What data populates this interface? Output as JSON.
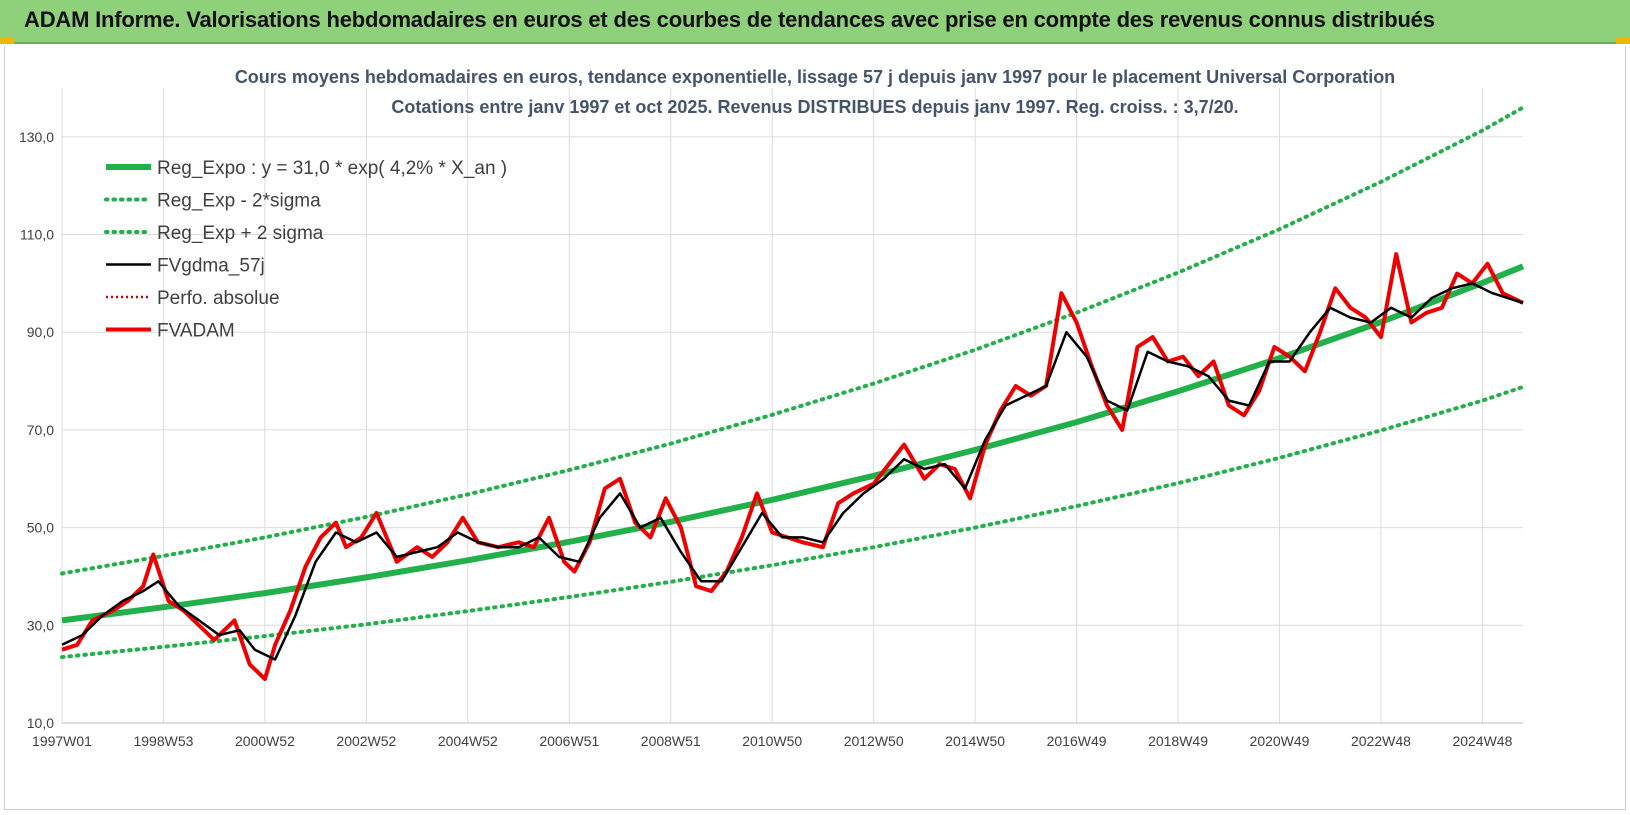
{
  "header": {
    "title": "ADAM Informe. Valorisations hebdomadaires en euros et des courbes de tendances avec prise en compte des revenus connus distribués"
  },
  "colors": {
    "header_bg": "#8fd07a",
    "accent": "#f2b600",
    "reg_expo": "#22b04b",
    "fvgdma": "#000000",
    "perfo": "#cc0000",
    "fvadam": "#ee0000"
  },
  "chart_data": {
    "type": "line",
    "title": "Cours moyens hebdomadaires en euros, tendance exponentielle, lissage 57 j depuis janv 1997 pour le placement Universal Corporation",
    "subtitle": "Cotations entre janv 1997 et oct 2025. Revenus DISTRIBUES depuis janv 1997. Reg. croiss. : 3,7/20.",
    "ylim": [
      10,
      140
    ],
    "xlim": [
      1997.0,
      2025.8
    ],
    "grid": true,
    "legend_position": "top-left",
    "y_ticks": [
      {
        "value": 10,
        "label": "10,0"
      },
      {
        "value": 30,
        "label": "30,0"
      },
      {
        "value": 50,
        "label": "50,0"
      },
      {
        "value": 70,
        "label": "70,0"
      },
      {
        "value": 90,
        "label": "90,0"
      },
      {
        "value": 110,
        "label": "110,0"
      },
      {
        "value": 130,
        "label": "130,0"
      }
    ],
    "x_ticks": [
      {
        "value": 1997.0,
        "label": "1997W01"
      },
      {
        "value": 1999.0,
        "label": "1998W53"
      },
      {
        "value": 2001.0,
        "label": "2000W52"
      },
      {
        "value": 2003.0,
        "label": "2002W52"
      },
      {
        "value": 2005.0,
        "label": "2004W52"
      },
      {
        "value": 2007.0,
        "label": "2006W51"
      },
      {
        "value": 2009.0,
        "label": "2008W51"
      },
      {
        "value": 2011.0,
        "label": "2010W50"
      },
      {
        "value": 2013.0,
        "label": "2012W50"
      },
      {
        "value": 2015.0,
        "label": "2014W50"
      },
      {
        "value": 2017.0,
        "label": "2016W49"
      },
      {
        "value": 2019.0,
        "label": "2018W49"
      },
      {
        "value": 2021.0,
        "label": "2020W49"
      },
      {
        "value": 2023.0,
        "label": "2022W48"
      },
      {
        "value": 2025.0,
        "label": "2024W48"
      }
    ],
    "legend": [
      {
        "key": "reg_expo",
        "label": "Reg_Expo : y = 31,0 * exp( 4,2% *  X_an )"
      },
      {
        "key": "reg_minus",
        "label": "Reg_Exp - 2*sigma"
      },
      {
        "key": "reg_plus",
        "label": "Reg_Exp + 2 sigma"
      },
      {
        "key": "fvgdma",
        "label": "FVgdma_57j"
      },
      {
        "key": "perfo",
        "label": "Perfo. absolue"
      },
      {
        "key": "fvadam",
        "label": "FVADAM"
      }
    ],
    "series": [
      {
        "key": "reg_expo",
        "x": [
          1997.0,
          1999.0,
          2001.0,
          2003.0,
          2005.0,
          2007.0,
          2009.0,
          2011.0,
          2013.0,
          2015.0,
          2017.0,
          2019.0,
          2021.0,
          2023.0,
          2025.0,
          2025.8
        ],
        "values": [
          31.0,
          33.7,
          36.6,
          39.8,
          43.3,
          47.1,
          51.2,
          55.7,
          60.6,
          65.9,
          71.6,
          77.9,
          84.7,
          92.1,
          100.1,
          103.5
        ]
      },
      {
        "key": "reg_minus",
        "x": [
          1997.0,
          1999.0,
          2001.0,
          2003.0,
          2005.0,
          2007.0,
          2009.0,
          2011.0,
          2013.0,
          2015.0,
          2017.0,
          2019.0,
          2021.0,
          2023.0,
          2025.0,
          2025.8
        ],
        "values": [
          23.5,
          25.6,
          27.8,
          30.2,
          32.9,
          35.8,
          38.9,
          42.3,
          46.0,
          50.0,
          54.4,
          59.1,
          64.3,
          69.9,
          76.0,
          78.8
        ]
      },
      {
        "key": "reg_plus",
        "x": [
          1997.0,
          1999.0,
          2001.0,
          2003.0,
          2005.0,
          2007.0,
          2009.0,
          2011.0,
          2013.0,
          2015.0,
          2017.0,
          2019.0,
          2021.0,
          2023.0,
          2025.0,
          2025.8
        ],
        "values": [
          40.6,
          44.2,
          48.0,
          52.2,
          56.8,
          61.8,
          67.2,
          73.1,
          79.5,
          86.4,
          94.0,
          102.2,
          111.1,
          120.8,
          131.3,
          136.0
        ]
      },
      {
        "key": "fvadam",
        "x": [
          1997.0,
          1997.3,
          1997.6,
          1998.0,
          1998.3,
          1998.6,
          1998.8,
          1999.1,
          1999.4,
          1999.7,
          2000.0,
          2000.2,
          2000.4,
          2000.7,
          2001.0,
          2001.2,
          2001.5,
          2001.8,
          2002.1,
          2002.4,
          2002.6,
          2002.9,
          2003.2,
          2003.6,
          2004.0,
          2004.3,
          2004.6,
          2004.9,
          2005.2,
          2005.6,
          2006.0,
          2006.3,
          2006.6,
          2006.9,
          2007.1,
          2007.4,
          2007.7,
          2008.0,
          2008.3,
          2008.6,
          2008.9,
          2009.2,
          2009.5,
          2009.8,
          2010.1,
          2010.4,
          2010.7,
          2011.0,
          2011.3,
          2011.6,
          2012.0,
          2012.3,
          2012.6,
          2013.0,
          2013.3,
          2013.6,
          2014.0,
          2014.3,
          2014.6,
          2014.9,
          2015.2,
          2015.5,
          2015.8,
          2016.1,
          2016.4,
          2016.7,
          2017.0,
          2017.3,
          2017.6,
          2017.9,
          2018.2,
          2018.5,
          2018.8,
          2019.1,
          2019.4,
          2019.7,
          2020.0,
          2020.3,
          2020.6,
          2020.9,
          2021.2,
          2021.5,
          2021.8,
          2022.1,
          2022.4,
          2022.7,
          2023.0,
          2023.3,
          2023.6,
          2023.9,
          2024.2,
          2024.5,
          2024.8,
          2025.1,
          2025.4,
          2025.8
        ],
        "values": [
          25,
          26,
          31,
          33,
          35,
          38,
          44.5,
          35,
          33,
          30,
          27,
          29,
          31,
          22,
          19,
          26,
          33,
          42,
          48,
          51,
          46,
          48,
          53,
          43,
          46,
          44,
          47,
          52,
          47,
          46,
          47,
          46,
          52,
          43,
          41,
          47,
          58,
          60,
          51,
          48,
          56,
          50,
          38,
          37,
          41,
          48,
          57,
          49,
          48,
          47,
          46,
          55,
          57,
          59,
          63,
          67,
          60,
          63,
          62,
          56,
          67,
          74,
          79,
          77,
          79,
          98,
          92,
          83,
          75,
          70,
          87,
          89,
          84,
          85,
          81,
          84,
          75,
          73,
          78,
          87,
          85,
          82,
          90,
          99,
          95,
          93,
          89,
          106,
          92,
          94,
          95,
          102,
          100,
          104,
          98,
          96
        ]
      },
      {
        "key": "fvgdma",
        "x": [
          1997.0,
          1997.4,
          1997.8,
          1998.2,
          1998.6,
          1998.9,
          1999.3,
          1999.7,
          2000.1,
          2000.5,
          2000.8,
          2001.2,
          2001.6,
          2002.0,
          2002.4,
          2002.8,
          2003.2,
          2003.6,
          2004.0,
          2004.4,
          2004.8,
          2005.2,
          2005.6,
          2006.0,
          2006.4,
          2006.8,
          2007.2,
          2007.6,
          2008.0,
          2008.4,
          2008.8,
          2009.2,
          2009.6,
          2010.0,
          2010.4,
          2010.8,
          2011.2,
          2011.6,
          2012.0,
          2012.4,
          2012.8,
          2013.2,
          2013.6,
          2014.0,
          2014.4,
          2014.8,
          2015.2,
          2015.6,
          2016.0,
          2016.4,
          2016.8,
          2017.2,
          2017.6,
          2018.0,
          2018.4,
          2018.8,
          2019.2,
          2019.6,
          2020.0,
          2020.4,
          2020.8,
          2021.2,
          2021.6,
          2022.0,
          2022.4,
          2022.8,
          2023.2,
          2023.6,
          2024.0,
          2024.4,
          2024.8,
          2025.2,
          2025.8
        ],
        "values": [
          26,
          28,
          32,
          35,
          37,
          39,
          34,
          31,
          28,
          29,
          25,
          23,
          32,
          43,
          49,
          47,
          49,
          44,
          45,
          46,
          49,
          47,
          46,
          46,
          48,
          44,
          43,
          52,
          57,
          50,
          52,
          45,
          39,
          39,
          46,
          53,
          48,
          48,
          47,
          53,
          57,
          60,
          64,
          62,
          63,
          58,
          68,
          75,
          77,
          79,
          90,
          85,
          76,
          74,
          86,
          84,
          83,
          81,
          76,
          75,
          84,
          84,
          90,
          95,
          93,
          92,
          95,
          93,
          97,
          99,
          100,
          98,
          96
        ]
      },
      {
        "key": "perfo",
        "x": [],
        "values": []
      }
    ]
  }
}
